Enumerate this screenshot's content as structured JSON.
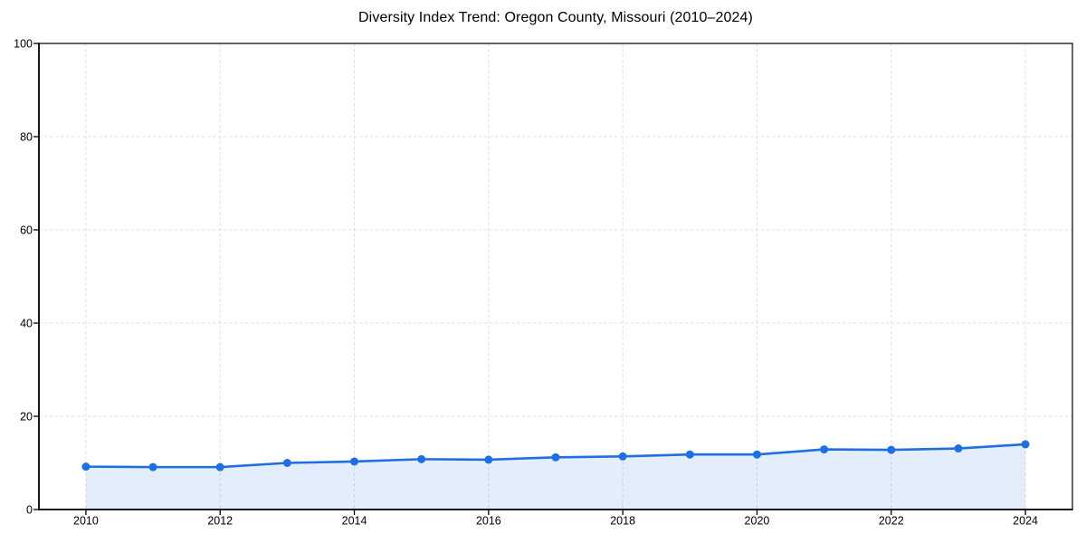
{
  "window": {
    "background": "#ffffff"
  },
  "chart_data": {
    "type": "area",
    "title": "Diversity Index Trend: Oregon County, Missouri (2010–2024)",
    "x": [
      2010,
      2011,
      2012,
      2013,
      2014,
      2015,
      2016,
      2017,
      2018,
      2019,
      2020,
      2021,
      2022,
      2023,
      2024
    ],
    "series": [
      {
        "name": "Diversity Index",
        "values": [
          9.2,
          9.1,
          9.1,
          10.0,
          10.3,
          10.8,
          10.7,
          11.2,
          11.4,
          11.8,
          11.8,
          12.9,
          12.8,
          13.1,
          14.0
        ]
      }
    ],
    "xlabel": "",
    "ylabel": "",
    "xlim": [
      2009.3,
      2024.7
    ],
    "ylim": [
      0,
      100
    ],
    "xticks": [
      2010,
      2012,
      2014,
      2016,
      2018,
      2020,
      2022,
      2024
    ],
    "yticks": [
      0,
      20,
      40,
      60,
      80,
      100
    ],
    "grid": true,
    "grid_style": "dashed",
    "legend_position": "none",
    "marker": "circle",
    "colors": {
      "line": "#1f6fe0",
      "fill": "#1f6fe0",
      "fill_opacity": 0.12,
      "grid": "#e0e0e0",
      "axis": "#000000",
      "text": "#000000",
      "background": "#ffffff"
    }
  }
}
